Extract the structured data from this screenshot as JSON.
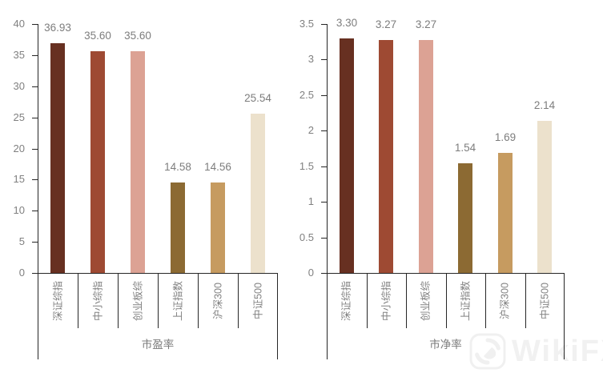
{
  "watermark": {
    "text": "WikiFX"
  },
  "colors": {
    "bar_palette": [
      "#673021",
      "#9E4A33",
      "#DCA294",
      "#8C6A33",
      "#C69B60",
      "#ECE1CC"
    ],
    "axis_line": "#262626",
    "tick_text": "#808080",
    "value_text": "#7d7d7d"
  },
  "chart_data": [
    {
      "type": "bar",
      "title": "",
      "xlabel": "市盈率",
      "ylabel": "",
      "categories": [
        "深证综指",
        "中小综指",
        "创业板综",
        "上证指数",
        "沪深300",
        "中证500"
      ],
      "values": [
        36.93,
        35.6,
        35.6,
        14.58,
        14.56,
        25.54
      ],
      "value_labels": [
        "36.93",
        "35.60",
        "35.60",
        "14.58",
        "14.56",
        "25.54"
      ],
      "ylim": [
        0,
        40
      ],
      "ytick_values": [
        0,
        5,
        10,
        15,
        20,
        25,
        30,
        35,
        40
      ],
      "ytick_labels": [
        "0",
        "5",
        "10",
        "15",
        "20",
        "25",
        "30",
        "35",
        "40"
      ],
      "grid": false,
      "legend": false
    },
    {
      "type": "bar",
      "title": "",
      "xlabel": "市净率",
      "ylabel": "",
      "categories": [
        "深证综指",
        "中小综指",
        "创业板综",
        "上证指数",
        "沪深300",
        "中证500"
      ],
      "values": [
        3.3,
        3.27,
        3.27,
        1.54,
        1.69,
        2.14
      ],
      "value_labels": [
        "3.30",
        "3.27",
        "3.27",
        "1.54",
        "1.69",
        "2.14"
      ],
      "ylim": [
        0,
        3.5
      ],
      "ytick_values": [
        0,
        0.5,
        1,
        1.5,
        2,
        2.5,
        3,
        3.5
      ],
      "ytick_labels": [
        "0",
        "0.5",
        "1",
        "1.5",
        "2",
        "2.5",
        "3",
        "3.5"
      ],
      "grid": false,
      "legend": false
    }
  ]
}
